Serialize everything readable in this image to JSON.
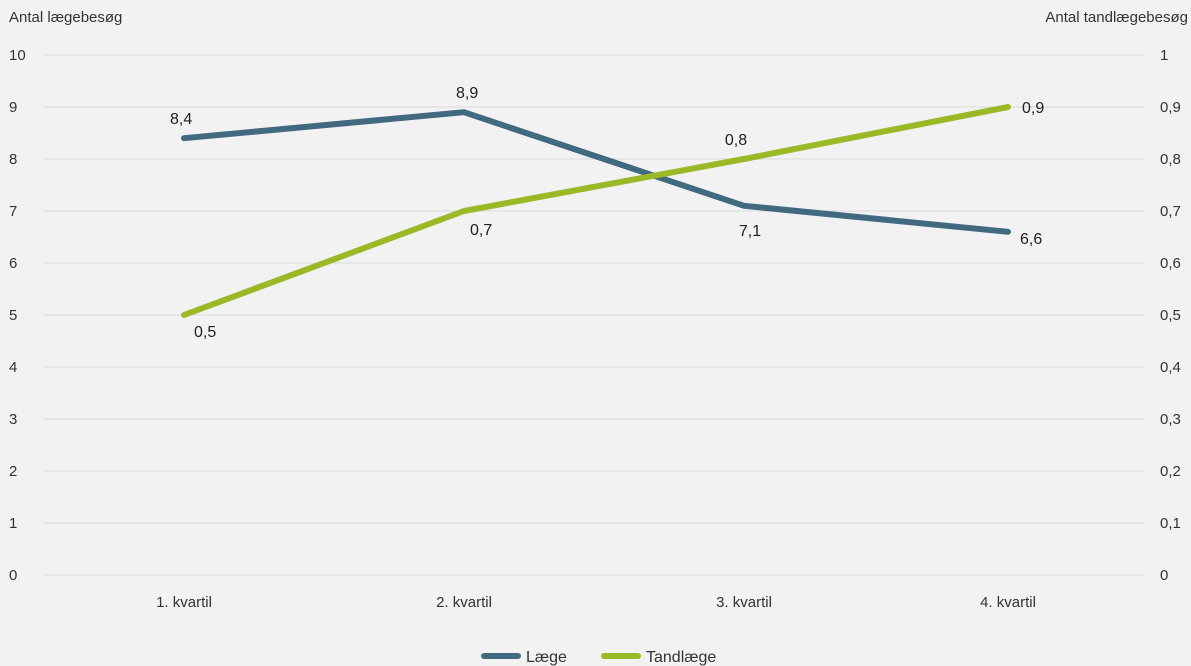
{
  "chart_data": {
    "type": "line",
    "categories": [
      "1. kvartil",
      "2. kvartil",
      "3. kvartil",
      "4. kvartil"
    ],
    "y_left": {
      "label": "Antal lægebesøg",
      "ylim": [
        0,
        10
      ],
      "ticks": [
        "0",
        "1",
        "2",
        "3",
        "4",
        "5",
        "6",
        "7",
        "8",
        "9",
        "10"
      ]
    },
    "y_right": {
      "label": "Antal tandlægebesøg",
      "ylim": [
        0,
        1
      ],
      "ticks": [
        "0",
        "0,1",
        "0,2",
        "0,3",
        "0,4",
        "0,5",
        "0,6",
        "0,7",
        "0,8",
        "0,9",
        "1"
      ]
    },
    "series": [
      {
        "name": "Læge",
        "axis": "left",
        "color": "#41697f",
        "values": [
          8.4,
          8.9,
          7.1,
          6.6
        ],
        "labels": [
          "8,4",
          "8,9",
          "7,1",
          "6,6"
        ]
      },
      {
        "name": "Tandlæge",
        "axis": "right",
        "color": "#9ab927",
        "values": [
          0.5,
          0.7,
          0.8,
          0.9
        ],
        "labels": [
          "0,5",
          "0,7",
          "0,8",
          "0,9"
        ]
      }
    ],
    "grid": true,
    "legend": "bottom-center"
  }
}
